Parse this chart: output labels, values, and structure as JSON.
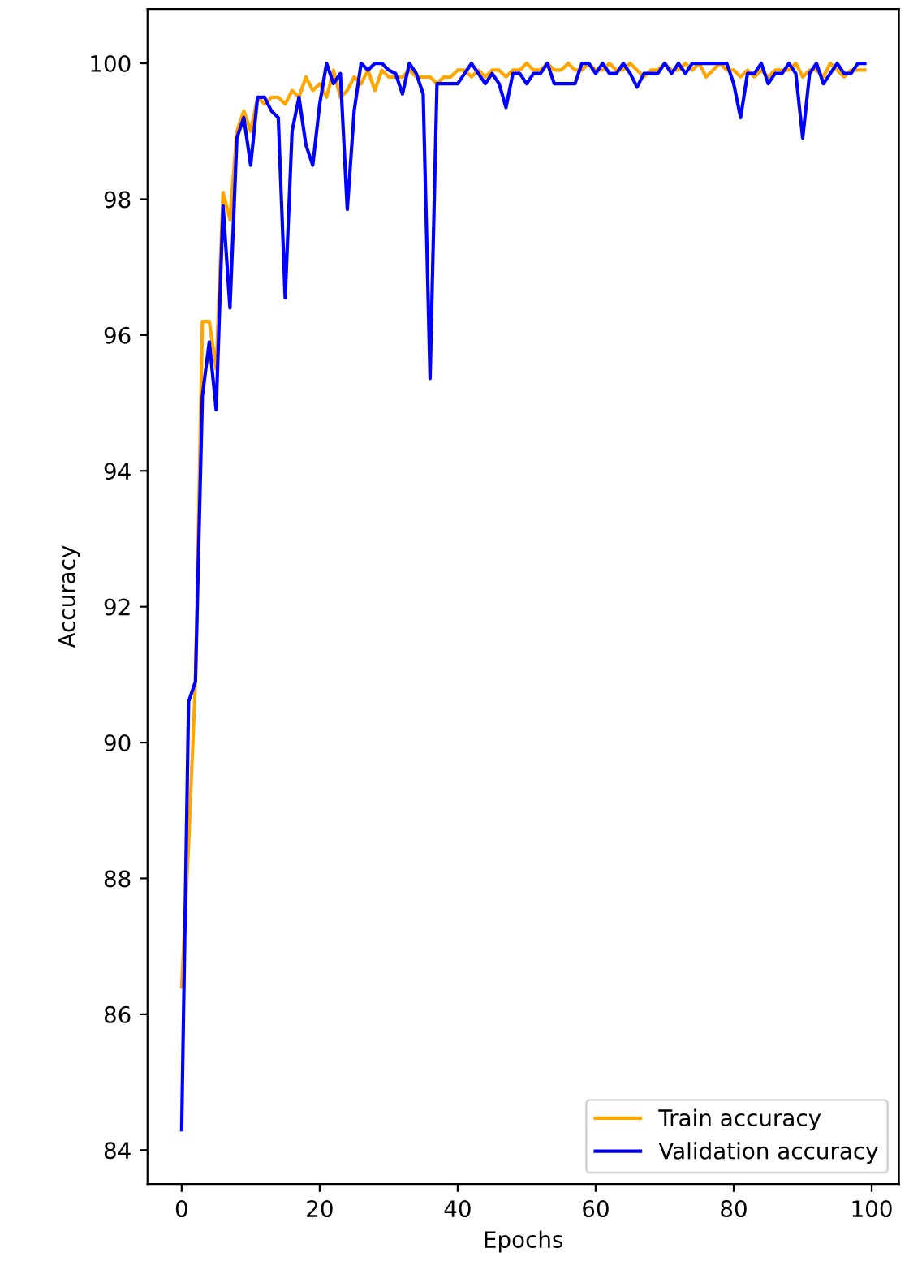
{
  "chart_data": {
    "type": "line",
    "xlabel": "Epochs",
    "ylabel": "Accuracy",
    "x": [
      0,
      1,
      2,
      3,
      4,
      5,
      6,
      7,
      8,
      9,
      10,
      11,
      12,
      13,
      14,
      15,
      16,
      17,
      18,
      19,
      20,
      21,
      22,
      23,
      24,
      25,
      26,
      27,
      28,
      29,
      30,
      31,
      32,
      33,
      34,
      35,
      36,
      37,
      38,
      39,
      40,
      41,
      42,
      43,
      44,
      45,
      46,
      47,
      48,
      49,
      50,
      51,
      52,
      53,
      54,
      55,
      56,
      57,
      58,
      59,
      60,
      61,
      62,
      63,
      64,
      65,
      66,
      67,
      68,
      69,
      70,
      71,
      72,
      73,
      74,
      75,
      76,
      77,
      78,
      79,
      80,
      81,
      82,
      83,
      84,
      85,
      86,
      87,
      88,
      89,
      90,
      91,
      92,
      93,
      94,
      95,
      96,
      97,
      98,
      99
    ],
    "series": [
      {
        "name": "Train accuracy",
        "color": "#ffa500",
        "values": [
          86.4,
          88.5,
          90.9,
          96.2,
          96.2,
          95.5,
          98.1,
          97.7,
          99.0,
          99.3,
          99.0,
          99.5,
          99.4,
          99.5,
          99.5,
          99.4,
          99.6,
          99.5,
          99.8,
          99.6,
          99.7,
          99.5,
          99.9,
          99.5,
          99.6,
          99.8,
          99.7,
          99.9,
          99.6,
          99.9,
          99.8,
          99.8,
          99.8,
          99.9,
          99.8,
          99.8,
          99.8,
          99.7,
          99.8,
          99.8,
          99.9,
          99.9,
          99.8,
          99.9,
          99.8,
          99.9,
          99.9,
          99.8,
          99.9,
          99.9,
          100,
          99.9,
          99.9,
          100,
          99.9,
          99.9,
          100,
          99.9,
          99.9,
          100,
          99.9,
          99.9,
          100,
          99.9,
          99.9,
          100,
          99.9,
          99.8,
          99.9,
          99.9,
          100,
          99.9,
          99.9,
          100,
          99.9,
          100,
          99.8,
          99.9,
          100,
          99.9,
          99.9,
          99.8,
          99.9,
          99.8,
          99.9,
          99.8,
          99.9,
          99.9,
          99.9,
          100,
          99.8,
          99.9,
          99.9,
          99.8,
          100,
          99.9,
          99.8,
          99.9,
          99.9,
          99.9
        ]
      },
      {
        "name": "Validation accuracy",
        "color": "#0000ff",
        "values": [
          84.3,
          90.6,
          90.9,
          95.1,
          95.9,
          94.9,
          97.9,
          96.4,
          98.9,
          99.2,
          98.5,
          99.5,
          99.5,
          99.3,
          99.2,
          96.55,
          99.0,
          99.5,
          98.8,
          98.5,
          99.4,
          100,
          99.7,
          99.85,
          97.85,
          99.3,
          100,
          99.9,
          100,
          100,
          99.9,
          99.85,
          99.55,
          100,
          99.85,
          99.55,
          95.36,
          99.7,
          99.7,
          99.7,
          99.7,
          99.85,
          100,
          99.85,
          99.7,
          99.85,
          99.7,
          99.35,
          99.85,
          99.85,
          99.7,
          99.85,
          99.85,
          100,
          99.7,
          99.7,
          99.7,
          99.7,
          100,
          100,
          99.85,
          100,
          99.85,
          99.85,
          100,
          99.85,
          99.65,
          99.85,
          99.85,
          99.85,
          100,
          99.85,
          100,
          99.85,
          100,
          100,
          100,
          100,
          100,
          100,
          99.7,
          99.2,
          99.85,
          99.85,
          100,
          99.7,
          99.85,
          99.85,
          100,
          99.85,
          98.9,
          99.85,
          100,
          99.7,
          99.85,
          100,
          99.85,
          99.85,
          100,
          100
        ]
      }
    ],
    "xlim": [
      -4.95,
      103.95
    ],
    "xticks": [
      0,
      20,
      40,
      60,
      80,
      100
    ],
    "ylim": [
      83.5,
      100.8
    ],
    "yticks": [
      84,
      86,
      88,
      90,
      92,
      94,
      96,
      98,
      100
    ],
    "grid": false,
    "legend": "bottom right",
    "line_style": "solid",
    "marker": "none"
  }
}
